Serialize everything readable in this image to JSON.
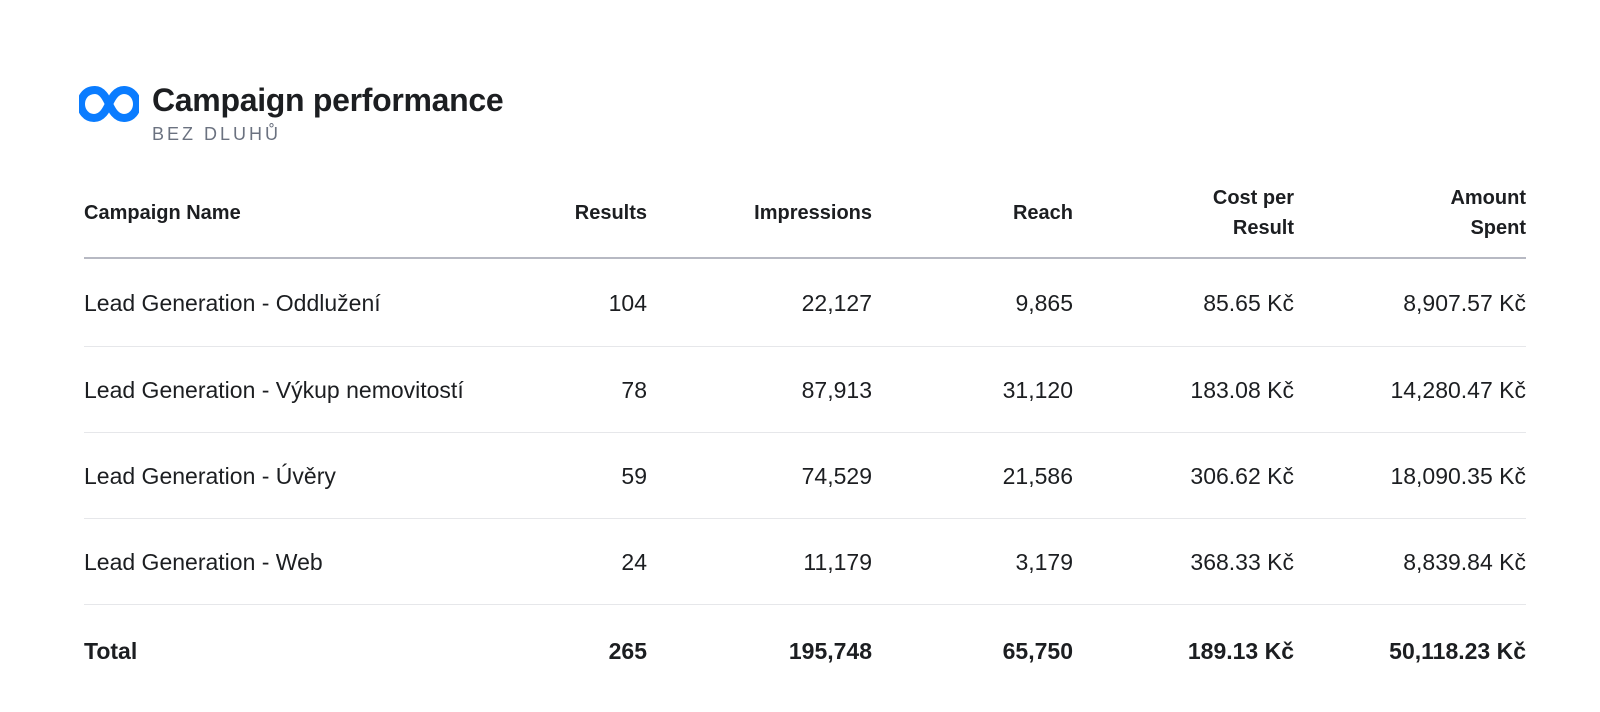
{
  "header": {
    "logo_icon": "meta-infinity-icon",
    "title": "Campaign performance",
    "subtitle": "BEZ DLUHŮ",
    "brand_color": "#0a7cff"
  },
  "table": {
    "columns": [
      "Campaign Name",
      "Results",
      "Impressions",
      "Reach",
      "Cost per Result",
      "Amount Spent"
    ],
    "rows": [
      {
        "name": "Lead Generation - Oddlužení",
        "results": "104",
        "impressions": "22,127",
        "reach": "9,865",
        "cpr": "85.65 Kč",
        "spent": "8,907.57 Kč"
      },
      {
        "name": "Lead Generation - Výkup nemovitostí",
        "results": "78",
        "impressions": "87,913",
        "reach": "31,120",
        "cpr": "183.08 Kč",
        "spent": "14,280.47 Kč"
      },
      {
        "name": "Lead Generation - Úvěry",
        "results": "59",
        "impressions": "74,529",
        "reach": "21,586",
        "cpr": "306.62 Kč",
        "spent": "18,090.35 Kč"
      },
      {
        "name": "Lead Generation - Web",
        "results": "24",
        "impressions": "11,179",
        "reach": "3,179",
        "cpr": "368.33 Kč",
        "spent": "8,839.84 Kč"
      }
    ],
    "total": {
      "label": "Total",
      "results": "265",
      "impressions": "195,748",
      "reach": "65,750",
      "cpr": "189.13 Kč",
      "spent": "50,118.23 Kč"
    }
  }
}
